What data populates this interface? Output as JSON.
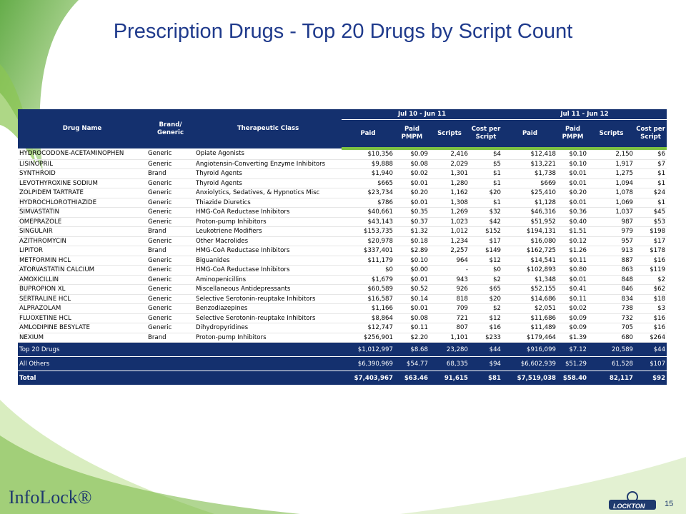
{
  "header": {
    "title": "Prescription Drugs - Top 20 Drugs by Script Count"
  },
  "table": {
    "group_headers": [
      "Jul 10 - Jun 11",
      "Jul 11 - Jun 12"
    ],
    "columns": [
      "Drug Name",
      "Brand/ Generic",
      "Therapeutic Class",
      "Paid",
      "Paid PMPM",
      "Scripts",
      "Cost per Script",
      "Paid",
      "Paid PMPM",
      "Scripts",
      "Cost per Script"
    ],
    "rows": [
      [
        "HYDROCODONE-ACETAMINOPHEN",
        "Generic",
        "Opiate Agonists",
        "$10,356",
        "$0.09",
        "2,416",
        "$4",
        "$12,418",
        "$0.10",
        "2,150",
        "$6"
      ],
      [
        "LISINOPRIL",
        "Generic",
        "Angiotensin-Converting Enzyme Inhibitors",
        "$9,888",
        "$0.08",
        "2,029",
        "$5",
        "$13,221",
        "$0.10",
        "1,917",
        "$7"
      ],
      [
        "SYNTHROID",
        "Brand",
        "Thyroid Agents",
        "$1,940",
        "$0.02",
        "1,301",
        "$1",
        "$1,738",
        "$0.01",
        "1,275",
        "$1"
      ],
      [
        "LEVOTHYROXINE SODIUM",
        "Generic",
        "Thyroid Agents",
        "$665",
        "$0.01",
        "1,280",
        "$1",
        "$669",
        "$0.01",
        "1,094",
        "$1"
      ],
      [
        "ZOLPIDEM TARTRATE",
        "Generic",
        "Anxiolytics, Sedatives, & Hypnotics Misc",
        "$23,734",
        "$0.20",
        "1,162",
        "$20",
        "$25,410",
        "$0.20",
        "1,078",
        "$24"
      ],
      [
        "HYDROCHLOROTHIAZIDE",
        "Generic",
        "Thiazide Diuretics",
        "$786",
        "$0.01",
        "1,308",
        "$1",
        "$1,128",
        "$0.01",
        "1,069",
        "$1"
      ],
      [
        "SIMVASTATIN",
        "Generic",
        "HMG-CoA Reductase Inhibitors",
        "$40,661",
        "$0.35",
        "1,269",
        "$32",
        "$46,316",
        "$0.36",
        "1,037",
        "$45"
      ],
      [
        "OMEPRAZOLE",
        "Generic",
        "Proton-pump Inhibitors",
        "$43,143",
        "$0.37",
        "1,023",
        "$42",
        "$51,952",
        "$0.40",
        "987",
        "$53"
      ],
      [
        "SINGULAIR",
        "Brand",
        "Leukotriene Modifiers",
        "$153,735",
        "$1.32",
        "1,012",
        "$152",
        "$194,131",
        "$1.51",
        "979",
        "$198"
      ],
      [
        "AZITHROMYCIN",
        "Generic",
        "Other Macrolides",
        "$20,978",
        "$0.18",
        "1,234",
        "$17",
        "$16,080",
        "$0.12",
        "957",
        "$17"
      ],
      [
        "LIPITOR",
        "Brand",
        "HMG-CoA Reductase Inhibitors",
        "$337,401",
        "$2.89",
        "2,257",
        "$149",
        "$162,725",
        "$1.26",
        "913",
        "$178"
      ],
      [
        "METFORMIN HCL",
        "Generic",
        "Biguanides",
        "$11,179",
        "$0.10",
        "964",
        "$12",
        "$14,541",
        "$0.11",
        "887",
        "$16"
      ],
      [
        "ATORVASTATIN CALCIUM",
        "Generic",
        "HMG-CoA Reductase Inhibitors",
        "$0",
        "$0.00",
        "-",
        "$0",
        "$102,893",
        "$0.80",
        "863",
        "$119"
      ],
      [
        "AMOXICILLIN",
        "Generic",
        "Aminopenicillins",
        "$1,679",
        "$0.01",
        "943",
        "$2",
        "$1,348",
        "$0.01",
        "848",
        "$2"
      ],
      [
        "BUPROPION XL",
        "Generic",
        "Miscellaneous Antidepressants",
        "$60,589",
        "$0.52",
        "926",
        "$65",
        "$52,155",
        "$0.41",
        "846",
        "$62"
      ],
      [
        "SERTRALINE HCL",
        "Generic",
        "Selective Serotonin-reuptake Inhibitors",
        "$16,587",
        "$0.14",
        "818",
        "$20",
        "$14,686",
        "$0.11",
        "834",
        "$18"
      ],
      [
        "ALPRAZOLAM",
        "Generic",
        "Benzodiazepines",
        "$1,166",
        "$0.01",
        "709",
        "$2",
        "$2,051",
        "$0.02",
        "738",
        "$3"
      ],
      [
        "FLUOXETINE HCL",
        "Generic",
        "Selective Serotonin-reuptake Inhibitors",
        "$8,864",
        "$0.08",
        "721",
        "$12",
        "$11,686",
        "$0.09",
        "732",
        "$16"
      ],
      [
        "AMLODIPINE BESYLATE",
        "Generic",
        "Dihydropyridines",
        "$12,747",
        "$0.11",
        "807",
        "$16",
        "$11,489",
        "$0.09",
        "705",
        "$16"
      ],
      [
        "NEXIUM",
        "Brand",
        "Proton-pump Inhibitors",
        "$256,901",
        "$2.20",
        "1,101",
        "$233",
        "$179,464",
        "$1.39",
        "680",
        "$264"
      ]
    ],
    "summary_rows": [
      {
        "label": "Top 20 Drugs",
        "cells": [
          "$1,012,997",
          "$8.68",
          "23,280",
          "$44",
          "$916,099",
          "$7.12",
          "20,589",
          "$44"
        ]
      },
      {
        "label": "All Others",
        "cells": [
          "$6,390,969",
          "$54.77",
          "68,335",
          "$94",
          "$6,602,939",
          "$51.29",
          "61,528",
          "$107"
        ]
      },
      {
        "label": "Total",
        "cells": [
          "$7,403,967",
          "$63.46",
          "91,615",
          "$81",
          "$7,519,038",
          "$58.40",
          "82,117",
          "$92"
        ]
      }
    ]
  },
  "footer": {
    "brand": "InfoLock®",
    "partner": "LOCKTON",
    "page": "15"
  }
}
